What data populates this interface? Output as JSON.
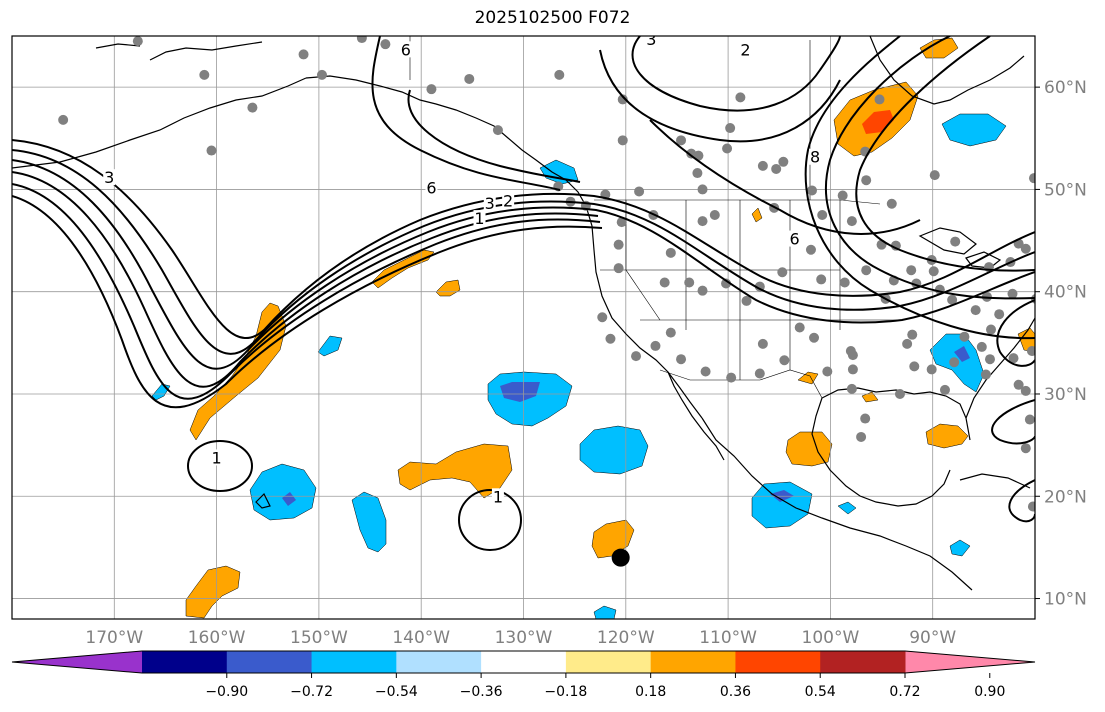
{
  "title": "2025102500 F072",
  "map": {
    "lon_range": [
      -180,
      -80
    ],
    "lat_range": [
      8,
      65
    ],
    "lon_ticks": [
      {
        "value": -170,
        "label": "170°W"
      },
      {
        "value": -160,
        "label": "160°W"
      },
      {
        "value": -150,
        "label": "150°W"
      },
      {
        "value": -140,
        "label": "140°W"
      },
      {
        "value": -130,
        "label": "130°W"
      },
      {
        "value": -120,
        "label": "120°W"
      },
      {
        "value": -110,
        "label": "110°W"
      },
      {
        "value": -100,
        "label": "100°W"
      },
      {
        "value": -90,
        "label": "90°W"
      }
    ],
    "lat_ticks": [
      {
        "value": 10,
        "label": "10°N"
      },
      {
        "value": 20,
        "label": "20°N"
      },
      {
        "value": 30,
        "label": "30°N"
      },
      {
        "value": 40,
        "label": "40°N"
      },
      {
        "value": 50,
        "label": "50°N"
      },
      {
        "value": 60,
        "label": "60°N"
      }
    ],
    "contour_labels": [
      {
        "text": "3",
        "lon": -170.5,
        "lat": 51.0
      },
      {
        "text": "6",
        "lon": -139.0,
        "lat": 50.0
      },
      {
        "text": "3",
        "lon": -133.3,
        "lat": 48.5
      },
      {
        "text": "2",
        "lon": -131.5,
        "lat": 48.7
      },
      {
        "text": "1",
        "lon": -134.3,
        "lat": 47.0
      },
      {
        "text": "6",
        "lon": -141.5,
        "lat": 63.5
      },
      {
        "text": "2",
        "lon": -108.3,
        "lat": 63.5
      },
      {
        "text": "3",
        "lon": -117.5,
        "lat": 64.5
      },
      {
        "text": "8",
        "lon": -101.5,
        "lat": 53.0
      },
      {
        "text": "6",
        "lon": -103.5,
        "lat": 45.0
      },
      {
        "text": "1",
        "lon": -160.0,
        "lat": 23.6
      },
      {
        "text": "1",
        "lon": -132.5,
        "lat": 19.8
      }
    ],
    "stations": [
      [
        -175.0,
        56.8
      ],
      [
        -167.7,
        64.5
      ],
      [
        -161.2,
        61.2
      ],
      [
        -160.5,
        53.8
      ],
      [
        -156.5,
        58.0
      ],
      [
        -151.5,
        63.2
      ],
      [
        -149.7,
        61.2
      ],
      [
        -145.8,
        64.8
      ],
      [
        -143.5,
        64.2
      ],
      [
        -139.0,
        59.8
      ],
      [
        -135.3,
        60.8
      ],
      [
        -132.5,
        55.8
      ],
      [
        -126.5,
        61.2
      ],
      [
        -120.3,
        58.8
      ],
      [
        -120.3,
        54.8
      ],
      [
        -126.6,
        50.3
      ],
      [
        -125.4,
        48.8
      ],
      [
        -123.9,
        48.4
      ],
      [
        -120.4,
        46.8
      ],
      [
        -120.7,
        44.6
      ],
      [
        -120.7,
        42.3
      ],
      [
        -122.0,
        49.5
      ],
      [
        -118.7,
        49.8
      ],
      [
        -117.3,
        47.5
      ],
      [
        -114.6,
        54.8
      ],
      [
        -113.6,
        53.5
      ],
      [
        -112.9,
        53.3
      ],
      [
        -113.0,
        51.6
      ],
      [
        -112.5,
        50.0
      ],
      [
        -110.1,
        54.0
      ],
      [
        -106.6,
        52.3
      ],
      [
        -105.3,
        52.0
      ],
      [
        -104.6,
        52.7
      ],
      [
        -101.8,
        49.9
      ],
      [
        -109.8,
        56.0
      ],
      [
        -108.8,
        59.0
      ],
      [
        -112.5,
        46.9
      ],
      [
        -111.3,
        47.5
      ],
      [
        -105.5,
        48.2
      ],
      [
        -98.8,
        49.4
      ],
      [
        -100.8,
        47.5
      ],
      [
        -97.9,
        46.9
      ],
      [
        -96.5,
        50.9
      ],
      [
        -95.2,
        58.8
      ],
      [
        -96.6,
        53.7
      ],
      [
        -89.8,
        51.4
      ],
      [
        -94.0,
        48.6
      ],
      [
        -93.6,
        44.5
      ],
      [
        -90.1,
        43.1
      ],
      [
        -87.8,
        44.9
      ],
      [
        -84.5,
        42.4
      ],
      [
        -82.4,
        42.9
      ],
      [
        -81.6,
        44.7
      ],
      [
        -80.1,
        51.1
      ],
      [
        -115.6,
        43.8
      ],
      [
        -116.2,
        40.9
      ],
      [
        -113.8,
        40.9
      ],
      [
        -112.5,
        40.1
      ],
      [
        -110.2,
        40.8
      ],
      [
        -106.9,
        40.5
      ],
      [
        -108.2,
        39.1
      ],
      [
        -104.7,
        41.9
      ],
      [
        -101.9,
        44.1
      ],
      [
        -100.9,
        41.2
      ],
      [
        -98.6,
        40.9
      ],
      [
        -96.5,
        42.1
      ],
      [
        -95.0,
        44.6
      ],
      [
        -93.8,
        41.1
      ],
      [
        -94.6,
        39.3
      ],
      [
        -92.1,
        42.1
      ],
      [
        -91.6,
        40.8
      ],
      [
        -89.3,
        40.2
      ],
      [
        -89.9,
        42.0
      ],
      [
        -88.1,
        39.2
      ],
      [
        -85.8,
        38.2
      ],
      [
        -83.5,
        37.8
      ],
      [
        -82.2,
        39.8
      ],
      [
        -84.7,
        39.5
      ],
      [
        -80.9,
        44.2
      ],
      [
        -79.9,
        39.3
      ],
      [
        -122.3,
        37.5
      ],
      [
        -121.5,
        35.4
      ],
      [
        -119.0,
        33.7
      ],
      [
        -117.1,
        34.7
      ],
      [
        -115.6,
        36.0
      ],
      [
        -114.6,
        33.4
      ],
      [
        -112.2,
        32.2
      ],
      [
        -109.7,
        31.6
      ],
      [
        -106.6,
        34.9
      ],
      [
        -106.9,
        32.0
      ],
      [
        -104.5,
        33.3
      ],
      [
        -103.0,
        36.5
      ],
      [
        -101.6,
        35.5
      ],
      [
        -100.3,
        32.2
      ],
      [
        -98.0,
        34.2
      ],
      [
        -97.9,
        30.5
      ],
      [
        -97.8,
        32.4
      ],
      [
        -97.8,
        33.8
      ],
      [
        -96.6,
        27.6
      ],
      [
        -97.0,
        25.8
      ],
      [
        -92.5,
        34.9
      ],
      [
        -91.8,
        32.7
      ],
      [
        -93.2,
        30.0
      ],
      [
        -90.1,
        32.4
      ],
      [
        -88.8,
        30.4
      ],
      [
        -86.9,
        35.6
      ],
      [
        -87.9,
        33.1
      ],
      [
        -84.8,
        31.9
      ],
      [
        -84.4,
        33.4
      ],
      [
        -84.3,
        36.3
      ],
      [
        -81.6,
        30.9
      ],
      [
        -82.1,
        33.5
      ],
      [
        -80.3,
        34.2
      ],
      [
        -80.9,
        30.3
      ],
      [
        -80.5,
        27.5
      ],
      [
        -80.9,
        24.7
      ],
      [
        -80.2,
        19.0
      ],
      [
        -85.2,
        34.6
      ],
      [
        -92.0,
        35.8
      ]
    ],
    "marker": {
      "lon": -120.5,
      "lat": 14.0
    }
  },
  "colorbar": {
    "tick_labels": [
      "−0.90",
      "−0.72",
      "−0.54",
      "−0.36",
      "−0.18",
      "0.18",
      "0.36",
      "0.54",
      "0.72",
      "0.90"
    ],
    "colors": [
      "#9932cc",
      "#00008b",
      "#3a5bcc",
      "#00bfff",
      "#b0e0ff",
      "#ffffff",
      "#ffeb8a",
      "#ffa500",
      "#ff4500",
      "#b22222",
      "#ff88aa"
    ]
  },
  "chart_data": {
    "type": "heatmap",
    "title": "2025102500 F072",
    "xlabel": "",
    "ylabel": "",
    "x_axis_ticks": [
      "170°W",
      "160°W",
      "150°W",
      "140°W",
      "130°W",
      "120°W",
      "110°W",
      "100°W",
      "90°W"
    ],
    "y_axis_ticks": [
      "10°N",
      "20°N",
      "30°N",
      "40°N",
      "50°N",
      "60°N"
    ],
    "colorbar_levels": [
      -0.9,
      -0.72,
      -0.54,
      -0.36,
      -0.18,
      0.18,
      0.36,
      0.54,
      0.72,
      0.9
    ],
    "contour_levels_labeled": [
      1,
      2,
      3,
      6,
      8
    ],
    "shaded_regions": [
      {
        "category": "positive 0.36-0.54",
        "color": "#ffa500",
        "approx_lon": -156,
        "approx_lat": 33
      },
      {
        "category": "positive 0.36-0.54",
        "color": "#ffa500",
        "approx_lon": -138,
        "approx_lat": 41
      },
      {
        "category": "positive 0.36-0.54",
        "color": "#ffa500",
        "approx_lon": -130,
        "approx_lat": 22
      },
      {
        "category": "positive 0.36-0.54",
        "color": "#ffa500",
        "approx_lon": -121,
        "approx_lat": 15
      },
      {
        "category": "positive 0.36-0.54",
        "color": "#ffa500",
        "approx_lon": -159,
        "approx_lat": 11
      },
      {
        "category": "positive 0.36-0.54",
        "color": "#ffa500",
        "approx_lon": -100,
        "approx_lat": 25
      },
      {
        "category": "positive 0.36-0.54",
        "color": "#ffa500",
        "approx_lon": -88,
        "approx_lat": 24
      },
      {
        "category": "positive 0.54-0.72",
        "color": "#ff4500",
        "approx_lon": -95,
        "approx_lat": 57
      },
      {
        "category": "negative -0.54 to -0.36",
        "color": "#00bfff",
        "approx_lon": -130,
        "approx_lat": 30
      },
      {
        "category": "negative -0.54 to -0.36",
        "color": "#00bfff",
        "approx_lon": -117,
        "approx_lat": 24
      },
      {
        "category": "negative -0.54 to -0.36",
        "color": "#00bfff",
        "approx_lon": -154,
        "approx_lat": 20
      },
      {
        "category": "negative -0.54 to -0.36",
        "color": "#00bfff",
        "approx_lon": -145,
        "approx_lat": 18
      },
      {
        "category": "negative -0.54 to -0.36",
        "color": "#00bfff",
        "approx_lon": -105,
        "approx_lat": 19
      },
      {
        "category": "negative -0.54 to -0.36",
        "color": "#00bfff",
        "approx_lon": -88,
        "approx_lat": 34
      },
      {
        "category": "negative -0.54 to -0.36",
        "color": "#00bfff",
        "approx_lon": -84,
        "approx_lat": 56
      },
      {
        "category": "negative -0.72 to -0.54",
        "color": "#3a5bcc",
        "approx_lon": -129,
        "approx_lat": 30
      }
    ]
  }
}
